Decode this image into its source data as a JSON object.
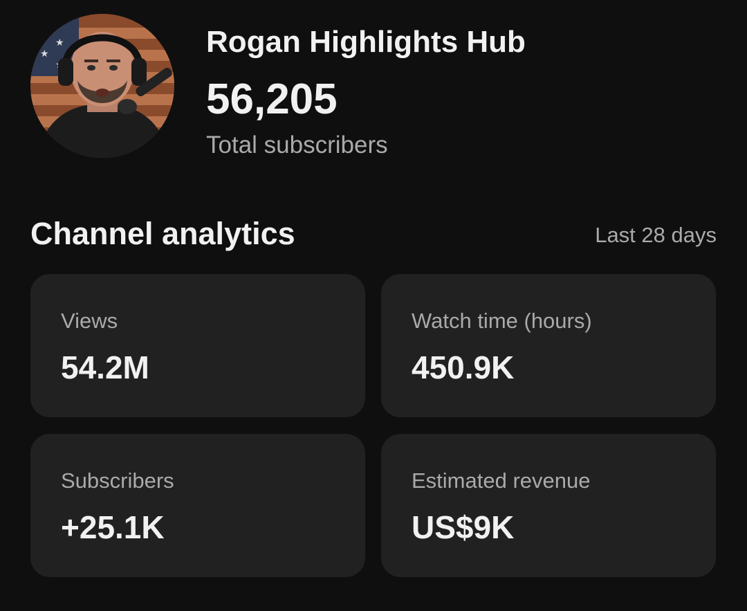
{
  "channel": {
    "name": "Rogan Highlights Hub",
    "subscriber_count": "56,205",
    "subscriber_caption": "Total subscribers"
  },
  "analytics": {
    "title": "Channel analytics",
    "period": "Last 28 days",
    "cards": [
      {
        "label": "Views",
        "value": "54.2M"
      },
      {
        "label": "Watch time (hours)",
        "value": "450.9K"
      },
      {
        "label": "Subscribers",
        "value": "+25.1K"
      },
      {
        "label": "Estimated revenue",
        "value": "US$9K"
      }
    ]
  },
  "colors": {
    "background": "#0f0f0f",
    "card": "#212121",
    "primary_text": "#f1f1f1",
    "secondary_text": "#aaaaaa"
  }
}
